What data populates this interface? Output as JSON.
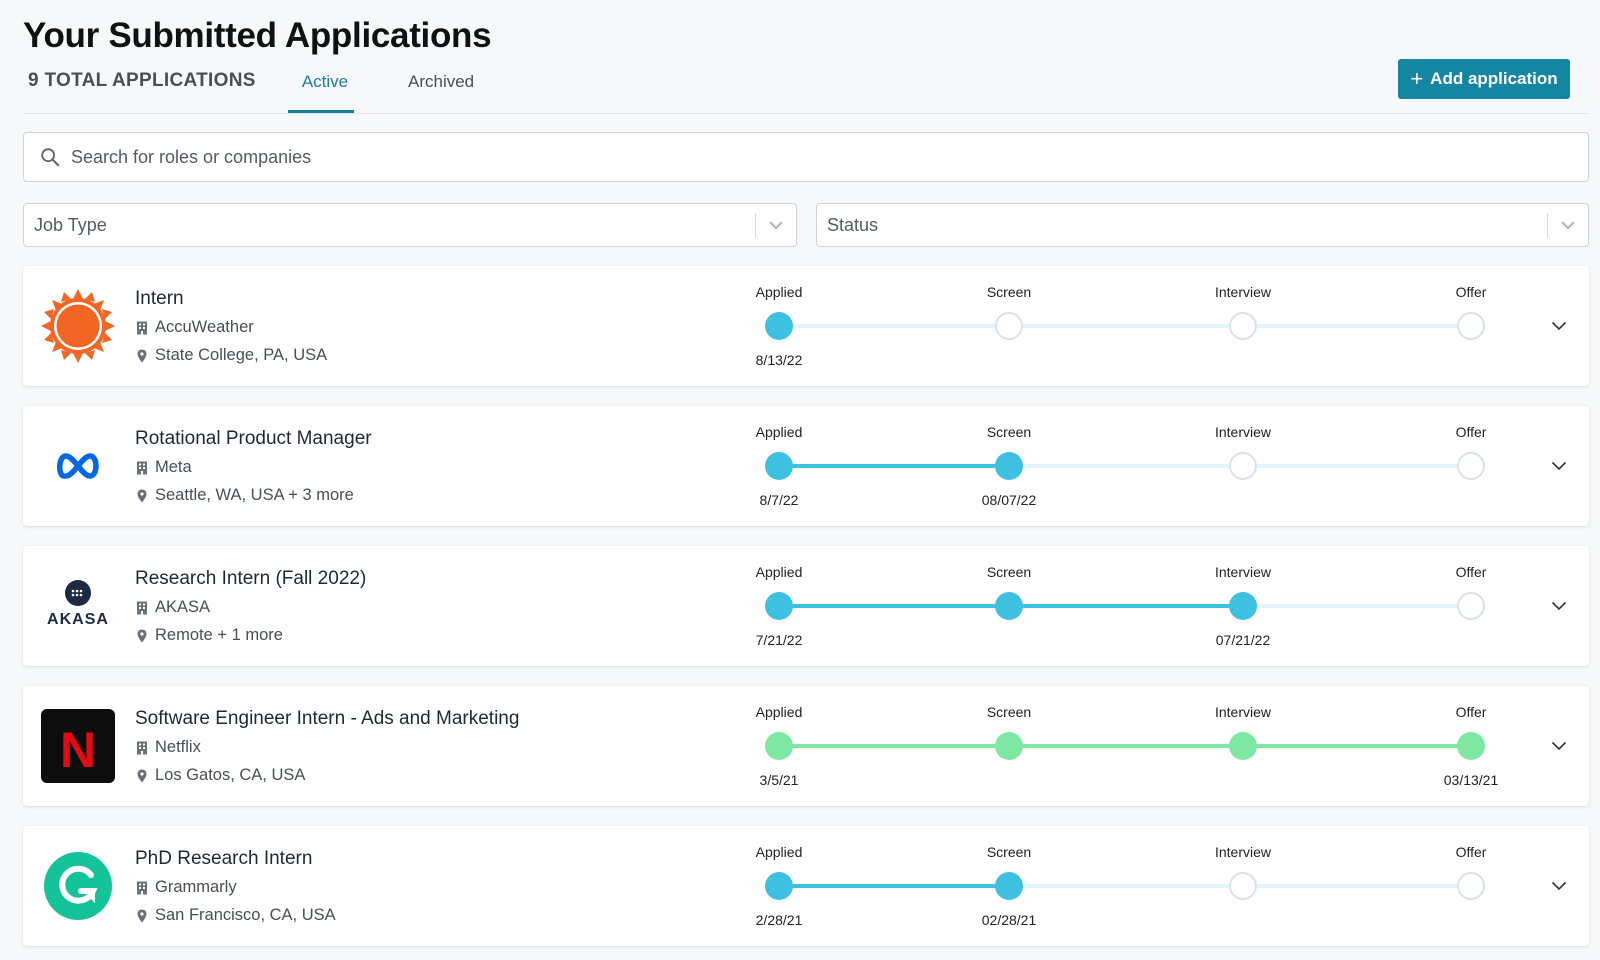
{
  "header": {
    "title": "Your Submitted Applications",
    "total": "9 TOTAL APPLICATIONS",
    "tabs": [
      {
        "label": "Active",
        "active": true
      },
      {
        "label": "Archived",
        "active": false
      }
    ],
    "add_button": "Add application"
  },
  "search": {
    "placeholder": "Search for roles or companies"
  },
  "filters": {
    "job_type": "Job Type",
    "status": "Status"
  },
  "colors": {
    "accent": "#1486a2",
    "progress_active": "#3ec0e0",
    "progress_track": "#e3f5fb",
    "progress_offer": "#7ee8a2"
  },
  "stages": [
    "Applied",
    "Screen",
    "Interview",
    "Offer"
  ],
  "applications": [
    {
      "role": "Intern",
      "company": "AccuWeather",
      "location": "State College, PA, USA",
      "logo": "accuweather-logo",
      "completed_stages": 1,
      "offer": false,
      "dates": [
        "8/13/22",
        "",
        "",
        ""
      ]
    },
    {
      "role": "Rotational Product Manager",
      "company": "Meta",
      "location": "Seattle, WA, USA + 3 more",
      "logo": "meta-logo",
      "completed_stages": 2,
      "offer": false,
      "dates": [
        "8/7/22",
        "08/07/22",
        "",
        ""
      ]
    },
    {
      "role": "Research Intern (Fall 2022)",
      "company": "AKASA",
      "location": "Remote + 1 more",
      "logo": "akasa-logo",
      "logo_text": "AKASA",
      "completed_stages": 3,
      "offer": false,
      "dates": [
        "7/21/22",
        "",
        "07/21/22",
        ""
      ]
    },
    {
      "role": "Software Engineer Intern - Ads and Marketing",
      "company": "Netflix",
      "location": "Los Gatos, CA, USA",
      "logo": "netflix-logo",
      "logo_text": "N",
      "completed_stages": 4,
      "offer": true,
      "dates": [
        "3/5/21",
        "",
        "",
        "03/13/21"
      ]
    },
    {
      "role": "PhD Research Intern",
      "company": "Grammarly",
      "location": "San Francisco, CA, USA",
      "logo": "grammarly-logo",
      "completed_stages": 2,
      "offer": false,
      "dates": [
        "2/28/21",
        "02/28/21",
        "",
        ""
      ]
    }
  ]
}
